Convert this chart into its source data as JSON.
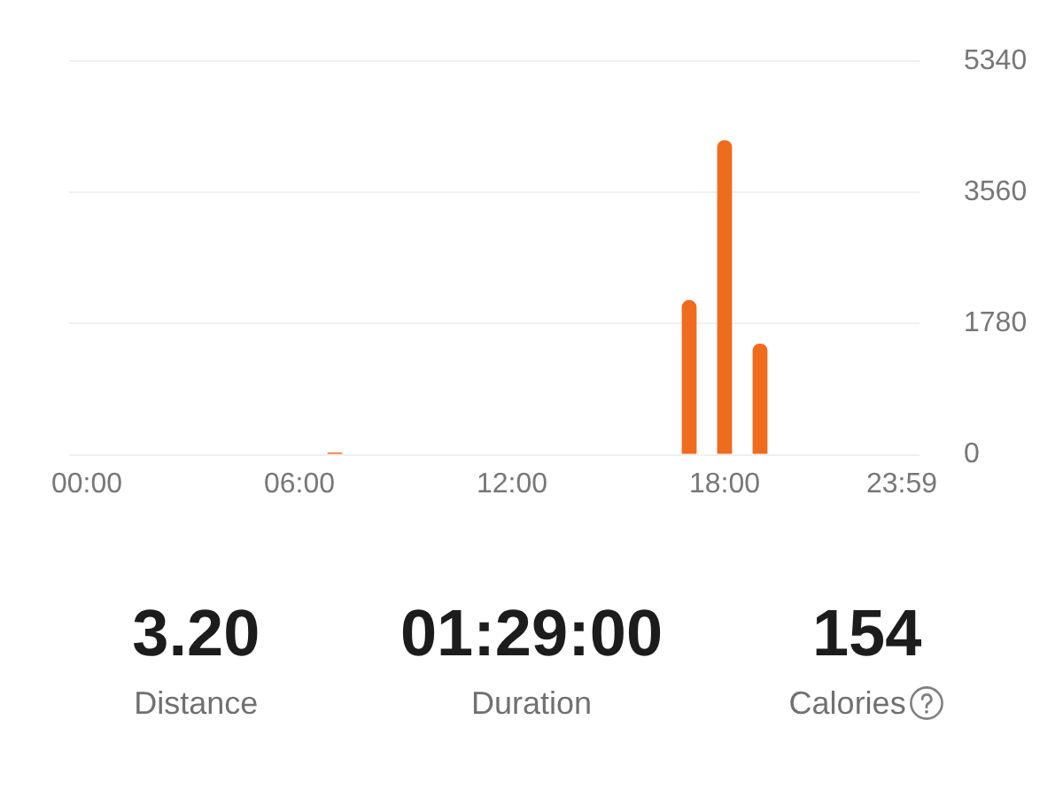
{
  "chart_data": [
    {
      "type": "bar",
      "categories": [
        "00:00",
        null,
        null,
        null,
        null,
        null,
        "06:00",
        null,
        null,
        null,
        null,
        null,
        "12:00",
        null,
        null,
        null,
        null,
        null,
        "18:00",
        null,
        null,
        null,
        null,
        "23:59"
      ],
      "values": [
        0,
        0,
        0,
        0,
        0,
        0,
        0,
        30,
        0,
        0,
        0,
        0,
        0,
        0,
        0,
        0,
        0,
        2100,
        4270,
        1510,
        0,
        0,
        0,
        0
      ],
      "color": "#ef6c1f",
      "ylim": [
        0,
        5340
      ],
      "yticks": [
        0,
        1780,
        3560,
        5340
      ],
      "grid": "y"
    },
    {
      "type": "other",
      "categories": [
        "Distance",
        "Duration",
        "Calories"
      ],
      "value_labels": [
        "3.20",
        "01:29:00",
        "154"
      ]
    }
  ]
}
